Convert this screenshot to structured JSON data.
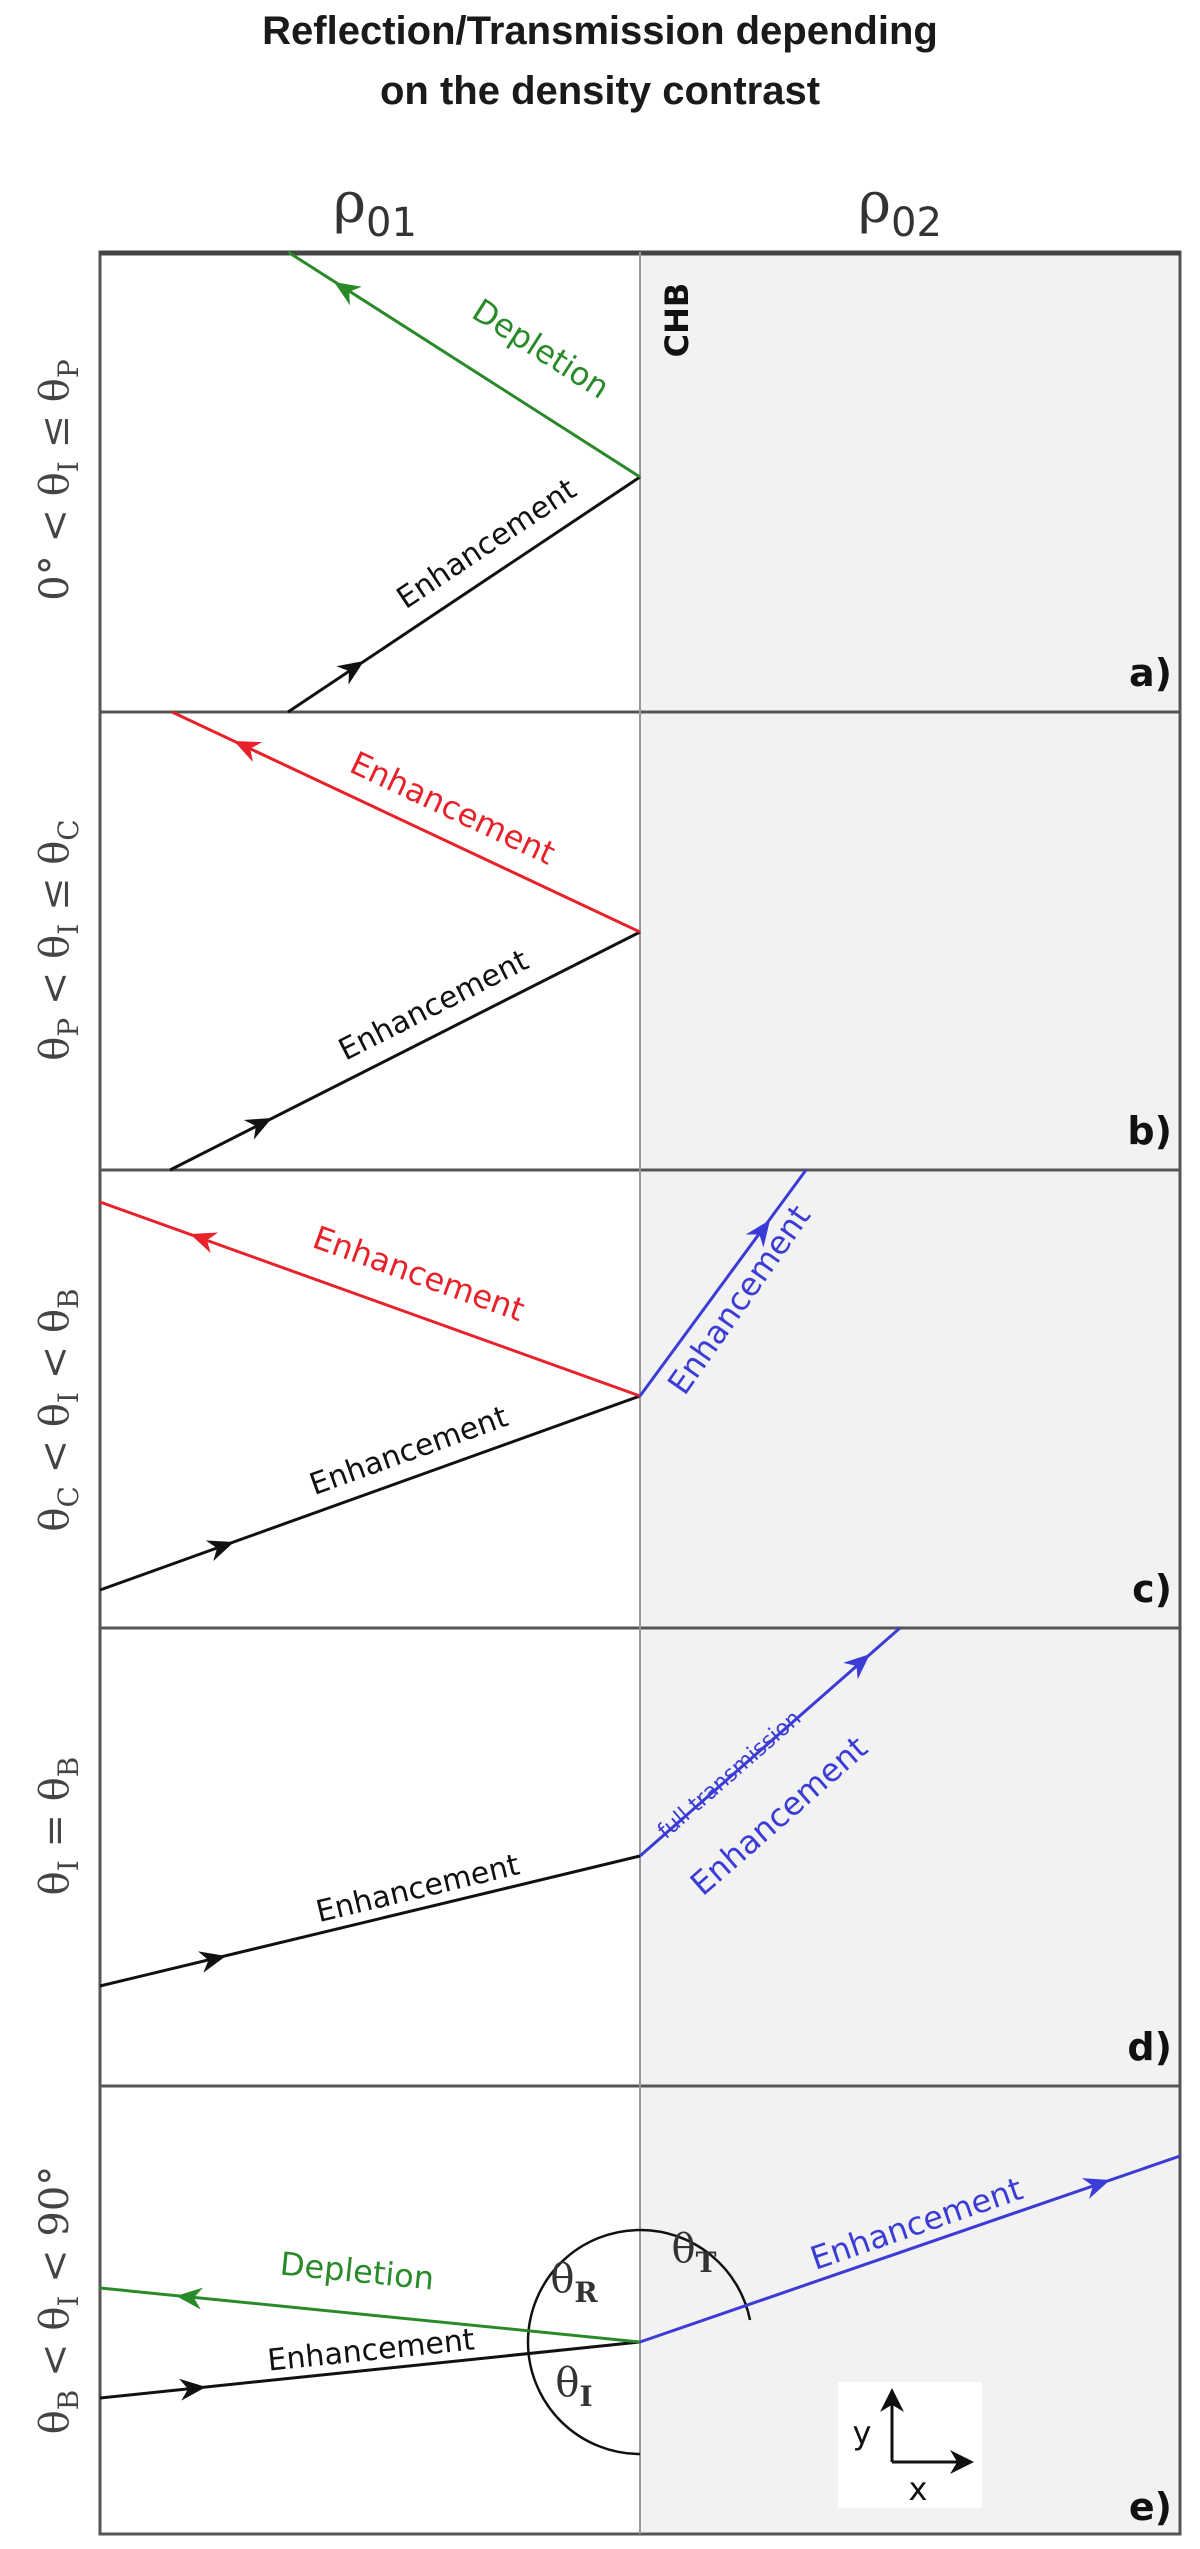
{
  "title_line1": "Reflection/Transmission depending",
  "title_line2": "on the density contrast",
  "medium_left": "ρ01",
  "medium_right": "ρ02",
  "boundary_label": "CHB",
  "colors": {
    "incident": "#111111",
    "reflected_depletion": "#2a8a2a",
    "reflected_enhancement": "#e8222a",
    "transmitted": "#3b3bd6",
    "right_medium_fill": "#f2f2f2"
  },
  "panels": [
    {
      "id": "a)",
      "condition": "0° < θI ≤ θP",
      "incident_label": "Enhancement",
      "reflected_label": "Depletion",
      "transmitted_label": ""
    },
    {
      "id": "b)",
      "condition": "θP < θI ≤ θC",
      "incident_label": "Enhancement",
      "reflected_label": "Enhancement",
      "transmitted_label": ""
    },
    {
      "id": "c)",
      "condition": "θC < θI < θB",
      "incident_label": "Enhancement",
      "reflected_label": "Enhancement",
      "transmitted_label": "Enhancement"
    },
    {
      "id": "d)",
      "condition": "θI = θB",
      "incident_label": "Enhancement",
      "reflected_label": "",
      "transmitted_label": "Enhancement",
      "transmission_note": "full transmission"
    },
    {
      "id": "e)",
      "condition": "θB < θI < 90°",
      "incident_label": "Enhancement",
      "reflected_label": "Depletion",
      "transmitted_label": "Enhancement",
      "angles": {
        "reflected": "θR",
        "incident": "θI",
        "transmitted": "θT"
      },
      "axes": {
        "x": "x",
        "y": "y"
      }
    }
  ]
}
